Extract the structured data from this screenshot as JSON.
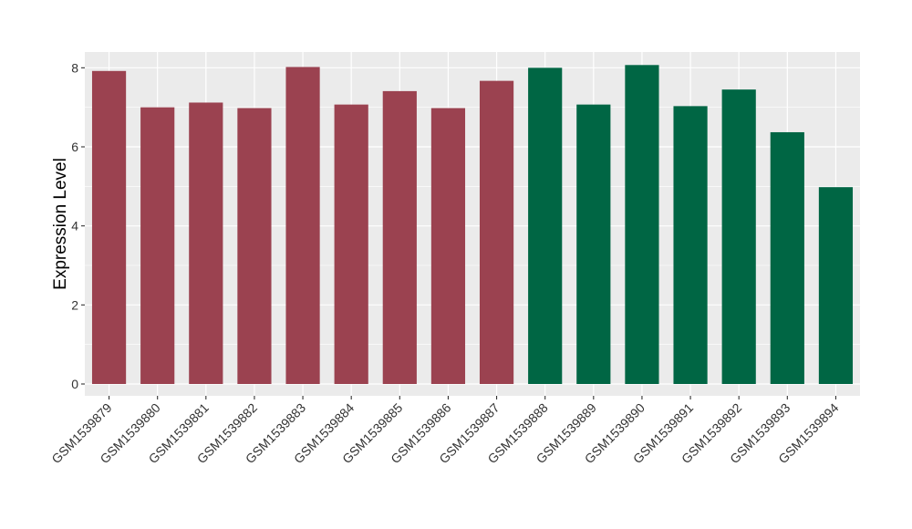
{
  "chart_data": {
    "type": "bar",
    "title": "",
    "xlabel": "",
    "ylabel": "Expression Level",
    "ylim": [
      -0.3,
      8.4
    ],
    "yticks": [
      0,
      2,
      4,
      6,
      8
    ],
    "grid": true,
    "legend": "none",
    "categories": [
      "GSM1539879",
      "GSM1539880",
      "GSM1539881",
      "GSM1539882",
      "GSM1539883",
      "GSM1539884",
      "GSM1539885",
      "GSM1539886",
      "GSM1539887",
      "GSM1539888",
      "GSM1539889",
      "GSM1539890",
      "GSM1539891",
      "GSM1539892",
      "GSM1539893",
      "GSM1539894"
    ],
    "values": [
      7.92,
      7.0,
      7.12,
      6.98,
      8.02,
      7.07,
      7.41,
      6.98,
      7.67,
      8.0,
      7.07,
      8.07,
      7.03,
      7.45,
      6.37,
      4.98
    ],
    "groups": [
      0,
      0,
      0,
      0,
      0,
      0,
      0,
      0,
      0,
      1,
      1,
      1,
      1,
      1,
      1,
      1
    ],
    "group_colors": [
      "#9b4250",
      "#006644"
    ],
    "panel_background": "#ebebeb",
    "grid_color": "#ffffff"
  }
}
